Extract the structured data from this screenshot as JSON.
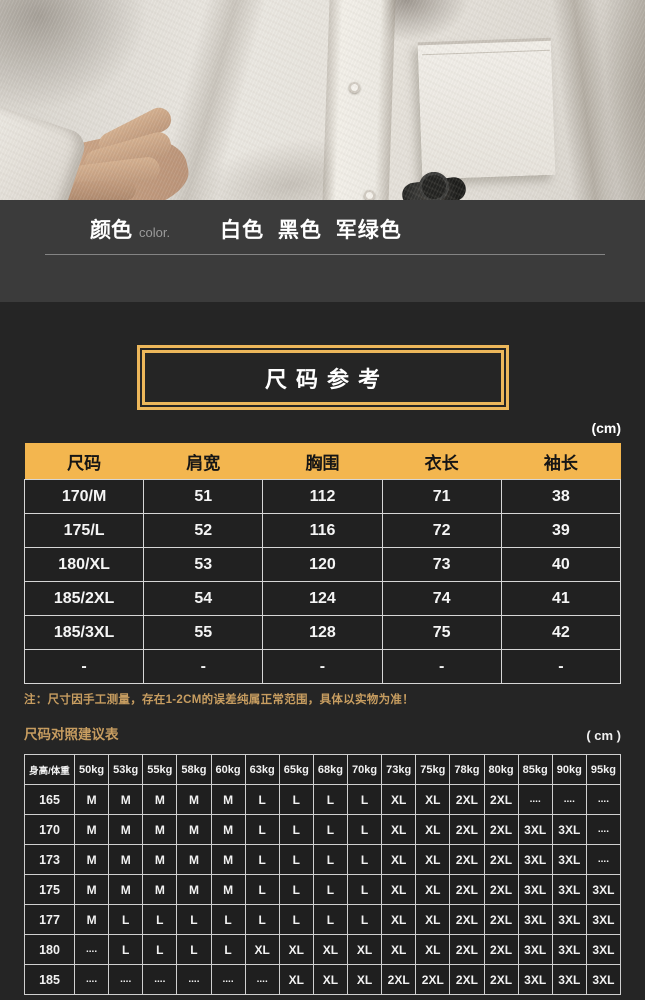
{
  "colors": {
    "page_bg": "#252525",
    "color_band_bg": "#3b3b3b",
    "accent_gold_header": "#f3b64f",
    "frame_gold": "#ecb75b",
    "note_gold": "#c79d60",
    "table_grid": "#d6d6d6",
    "text_white": "#ffffff"
  },
  "color_section": {
    "label": "颜色",
    "label_sub": "color.",
    "options": "白色 黑色 军绿色"
  },
  "size_reference": {
    "title": "尺码参考",
    "unit": "(cm)"
  },
  "size_table": {
    "headers": [
      "尺码",
      "肩宽",
      "胸围",
      "衣长",
      "袖长"
    ],
    "rows": [
      [
        "170/M",
        "51",
        "112",
        "71",
        "38"
      ],
      [
        "175/L",
        "52",
        "116",
        "72",
        "39"
      ],
      [
        "180/XL",
        "53",
        "120",
        "73",
        "40"
      ],
      [
        "185/2XL",
        "54",
        "124",
        "74",
        "41"
      ],
      [
        "185/3XL",
        "55",
        "128",
        "75",
        "42"
      ],
      [
        "-",
        "-",
        "-",
        "-",
        "-"
      ]
    ]
  },
  "note": {
    "text": "注：尺寸因手工测量，存在1-2CM的误差纯属正常范围，具体以实物为准！"
  },
  "suggestion_table": {
    "title": "尺码对照建议表",
    "unit": "( cm )",
    "corner_header": "身高/体重",
    "weight_headers": [
      "50kg",
      "53kg",
      "55kg",
      "58kg",
      "60kg",
      "63kg",
      "65kg",
      "68kg",
      "70kg",
      "73kg",
      "75kg",
      "78kg",
      "80kg",
      "85kg",
      "90kg",
      "95kg"
    ],
    "rows": [
      {
        "height": "165",
        "sizes": [
          "M",
          "M",
          "M",
          "M",
          "M",
          "L",
          "L",
          "L",
          "L",
          "XL",
          "XL",
          "2XL",
          "2XL",
          "....",
          "....",
          "...."
        ]
      },
      {
        "height": "170",
        "sizes": [
          "M",
          "M",
          "M",
          "M",
          "M",
          "L",
          "L",
          "L",
          "L",
          "XL",
          "XL",
          "2XL",
          "2XL",
          "3XL",
          "3XL",
          "...."
        ]
      },
      {
        "height": "173",
        "sizes": [
          "M",
          "M",
          "M",
          "M",
          "M",
          "L",
          "L",
          "L",
          "L",
          "XL",
          "XL",
          "2XL",
          "2XL",
          "3XL",
          "3XL",
          "...."
        ]
      },
      {
        "height": "175",
        "sizes": [
          "M",
          "M",
          "M",
          "M",
          "M",
          "L",
          "L",
          "L",
          "L",
          "XL",
          "XL",
          "2XL",
          "2XL",
          "3XL",
          "3XL",
          "3XL"
        ]
      },
      {
        "height": "177",
        "sizes": [
          "M",
          "L",
          "L",
          "L",
          "L",
          "L",
          "L",
          "L",
          "L",
          "XL",
          "XL",
          "2XL",
          "2XL",
          "3XL",
          "3XL",
          "3XL"
        ]
      },
      {
        "height": "180",
        "sizes": [
          "....",
          "L",
          "L",
          "L",
          "L",
          "XL",
          "XL",
          "XL",
          "XL",
          "XL",
          "XL",
          "2XL",
          "2XL",
          "3XL",
          "3XL",
          "3XL"
        ]
      },
      {
        "height": "185",
        "sizes": [
          "....",
          "....",
          "....",
          "....",
          "....",
          "....",
          "XL",
          "XL",
          "XL",
          "2XL",
          "2XL",
          "2XL",
          "2XL",
          "3XL",
          "3XL",
          "3XL"
        ]
      }
    ]
  }
}
